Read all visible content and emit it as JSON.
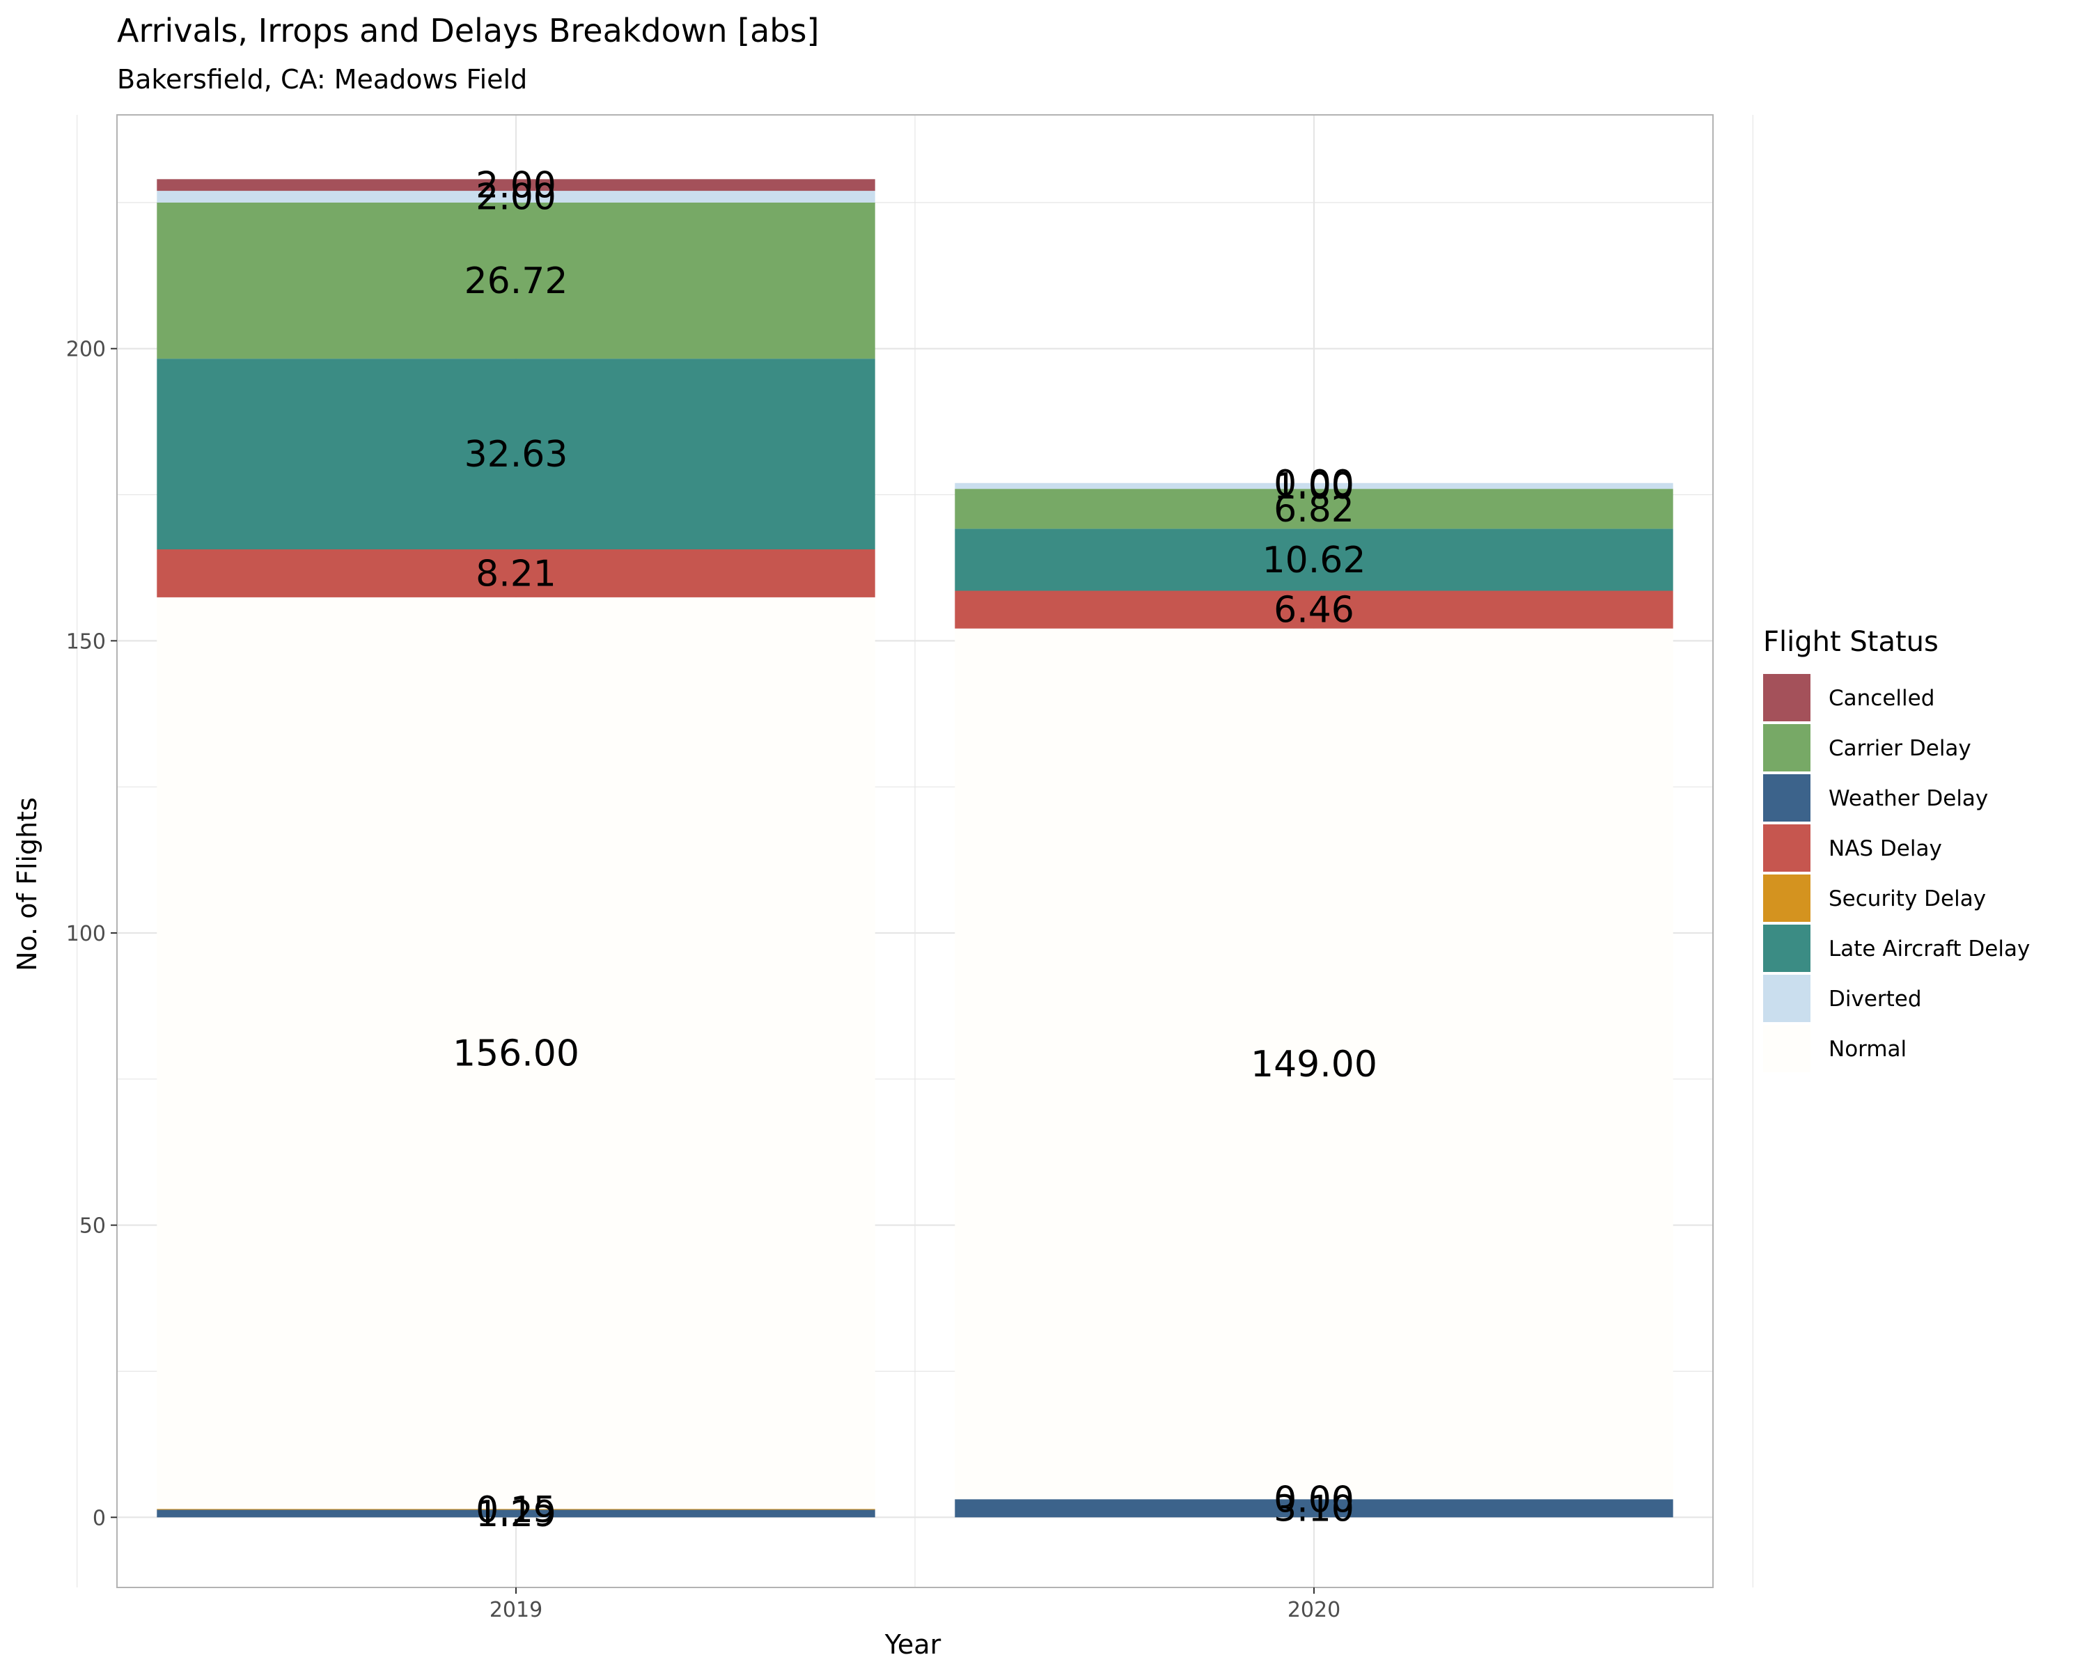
{
  "chart_data": {
    "type": "bar",
    "stacked": true,
    "title": "Arrivals, Irrops and Delays Breakdown [abs]",
    "subtitle": "Bakersfield, CA: Meadows Field",
    "xlabel": "Year",
    "ylabel": "No. of Flights",
    "categories": [
      "2019",
      "2020"
    ],
    "ylim": [
      -12,
      240
    ],
    "yticks": [
      0,
      50,
      100,
      150,
      200
    ],
    "grid": true,
    "legend": {
      "title": "Flight Status",
      "placement": "right"
    },
    "stack_order": [
      "Weather Delay",
      "Security Delay",
      "Normal",
      "NAS Delay",
      "Late Aircraft Delay",
      "Carrier Delay",
      "Diverted",
      "Cancelled"
    ],
    "series": [
      {
        "name": "Cancelled",
        "color": "#a4515a",
        "values": [
          2.0,
          0.0
        ],
        "labels": [
          "2.00",
          "0.00"
        ]
      },
      {
        "name": "Carrier Delay",
        "color": "#77a966",
        "values": [
          26.72,
          6.82
        ],
        "labels": [
          "26.72",
          "6.82"
        ]
      },
      {
        "name": "Weather Delay",
        "color": "#3c638b",
        "values": [
          1.29,
          3.1
        ],
        "labels": [
          "1.29",
          "3.10"
        ]
      },
      {
        "name": "NAS Delay",
        "color": "#c6564f",
        "values": [
          8.21,
          6.46
        ],
        "labels": [
          "8.21",
          "6.46"
        ]
      },
      {
        "name": "Security Delay",
        "color": "#d4931f",
        "values": [
          0.15,
          0.0
        ],
        "labels": [
          "0.15",
          "0.00"
        ]
      },
      {
        "name": "Late Aircraft Delay",
        "color": "#3b8c84",
        "values": [
          32.63,
          10.62
        ],
        "labels": [
          "32.63",
          "10.62"
        ]
      },
      {
        "name": "Diverted",
        "color": "#cadeee",
        "values": [
          2.0,
          1.0
        ],
        "labels": [
          "2.00",
          "1.00"
        ]
      },
      {
        "name": "Normal",
        "color": "#fffefb",
        "values": [
          156.0,
          149.0
        ],
        "labels": [
          "156.00",
          "149.00"
        ]
      }
    ]
  }
}
